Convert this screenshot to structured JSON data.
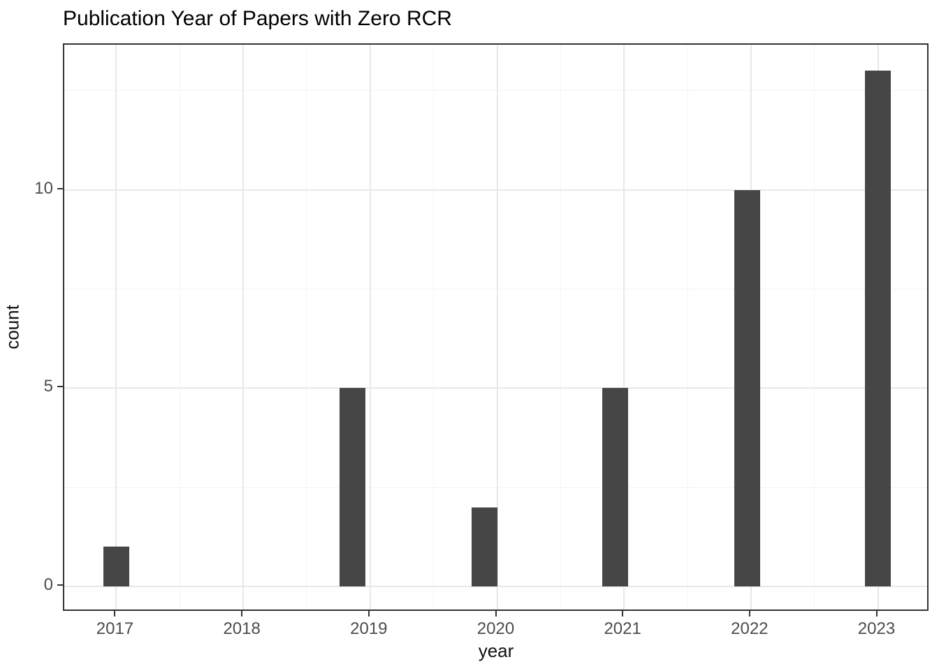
{
  "figure": {
    "background": "#ffffff"
  },
  "chart_data": {
    "type": "bar",
    "subtype": "histogram",
    "title": "Publication Year of Papers with Zero RCR",
    "xlabel": "year",
    "ylabel": "count",
    "categories": [
      "2017",
      "2018",
      "2019",
      "2020",
      "2021",
      "2022",
      "2023"
    ],
    "values": [
      1,
      0,
      5,
      2,
      5,
      10,
      13
    ],
    "x_ticks": [
      2017,
      2018,
      2019,
      2020,
      2021,
      2022,
      2023
    ],
    "y_ticks": [
      0,
      5,
      10
    ],
    "x_minor_ticks": [
      2017.5,
      2018.5,
      2019.5,
      2020.5,
      2021.5,
      2022.5
    ],
    "y_minor_ticks": [
      2.5,
      7.5,
      12.5
    ],
    "x_range": [
      2016.59,
      2023.41
    ],
    "y_range": [
      -0.65,
      13.66
    ],
    "bar_centers_x": [
      2017.0,
      2018.0,
      2018.86,
      2019.9,
      2020.93,
      2021.97,
      2023.0
    ],
    "bar_width_x": 0.207,
    "grid": true,
    "legend": false,
    "colors": {
      "bar_fill": "#464646",
      "panel_border": "#333333",
      "grid_major": "#e8e8e8",
      "grid_minor": "#f4f4f4",
      "tick_label": "#4d4d4d",
      "axis_title": "#111111",
      "title": "#000000",
      "background": "#ffffff"
    }
  }
}
